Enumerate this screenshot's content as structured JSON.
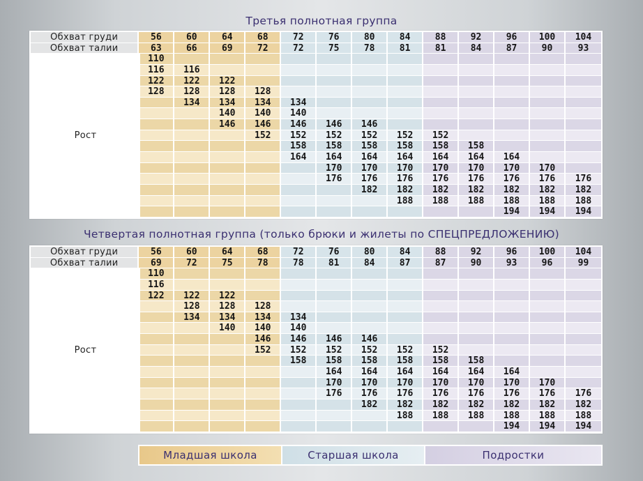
{
  "table1": {
    "title": "Третья полнотная группа",
    "chest_label": "Обхват груди",
    "waist_label": "Обхват талии",
    "height_label": "Рост",
    "chest": [
      "56",
      "60",
      "64",
      "68",
      "72",
      "76",
      "80",
      "84",
      "88",
      "92",
      "96",
      "100",
      "104"
    ],
    "waist": [
      "63",
      "66",
      "69",
      "72",
      "72",
      "75",
      "78",
      "81",
      "81",
      "84",
      "87",
      "90",
      "93"
    ],
    "rows": [
      [
        "110",
        "",
        "",
        "",
        "",
        "",
        "",
        "",
        "",
        "",
        "",
        "",
        ""
      ],
      [
        "116",
        "116",
        "",
        "",
        "",
        "",
        "",
        "",
        "",
        "",
        "",
        "",
        ""
      ],
      [
        "122",
        "122",
        "122",
        "",
        "",
        "",
        "",
        "",
        "",
        "",
        "",
        "",
        ""
      ],
      [
        "128",
        "128",
        "128",
        "128",
        "",
        "",
        "",
        "",
        "",
        "",
        "",
        "",
        ""
      ],
      [
        "",
        "134",
        "134",
        "134",
        "134",
        "",
        "",
        "",
        "",
        "",
        "",
        "",
        ""
      ],
      [
        "",
        "",
        "140",
        "140",
        "140",
        "",
        "",
        "",
        "",
        "",
        "",
        "",
        ""
      ],
      [
        "",
        "",
        "146",
        "146",
        "146",
        "146",
        "146",
        "",
        "",
        "",
        "",
        "",
        ""
      ],
      [
        "",
        "",
        "",
        "152",
        "152",
        "152",
        "152",
        "152",
        "152",
        "",
        "",
        "",
        ""
      ],
      [
        "",
        "",
        "",
        "",
        "158",
        "158",
        "158",
        "158",
        "158",
        "158",
        "",
        "",
        ""
      ],
      [
        "",
        "",
        "",
        "",
        "164",
        "164",
        "164",
        "164",
        "164",
        "164",
        "164",
        "",
        ""
      ],
      [
        "",
        "",
        "",
        "",
        "",
        "170",
        "170",
        "170",
        "170",
        "170",
        "170",
        "170",
        ""
      ],
      [
        "",
        "",
        "",
        "",
        "",
        "176",
        "176",
        "176",
        "176",
        "176",
        "176",
        "176",
        "176"
      ],
      [
        "",
        "",
        "",
        "",
        "",
        "",
        "182",
        "182",
        "182",
        "182",
        "182",
        "182",
        "182"
      ],
      [
        "",
        "",
        "",
        "",
        "",
        "",
        "",
        "188",
        "188",
        "188",
        "188",
        "188",
        "188"
      ],
      [
        "",
        "",
        "",
        "",
        "",
        "",
        "",
        "",
        "",
        "",
        "194",
        "194",
        "194"
      ]
    ]
  },
  "table2": {
    "title": "Четвертая полнотная группа (только брюки и жилеты по СПЕЦПРЕДЛОЖЕНИЮ)",
    "chest_label": "Обхват груди",
    "waist_label": "Обхват талии",
    "height_label": "Рост",
    "chest": [
      "56",
      "60",
      "64",
      "68",
      "72",
      "76",
      "80",
      "84",
      "88",
      "92",
      "96",
      "100",
      "104"
    ],
    "waist": [
      "69",
      "72",
      "75",
      "78",
      "78",
      "81",
      "84",
      "87",
      "87",
      "90",
      "93",
      "96",
      "99"
    ],
    "rows": [
      [
        "110",
        "",
        "",
        "",
        "",
        "",
        "",
        "",
        "",
        "",
        "",
        "",
        ""
      ],
      [
        "116",
        "",
        "",
        "",
        "",
        "",
        "",
        "",
        "",
        "",
        "",
        "",
        ""
      ],
      [
        "122",
        "122",
        "122",
        "",
        "",
        "",
        "",
        "",
        "",
        "",
        "",
        "",
        ""
      ],
      [
        "",
        "128",
        "128",
        "128",
        "",
        "",
        "",
        "",
        "",
        "",
        "",
        "",
        ""
      ],
      [
        "",
        "134",
        "134",
        "134",
        "134",
        "",
        "",
        "",
        "",
        "",
        "",
        "",
        ""
      ],
      [
        "",
        "",
        "140",
        "140",
        "140",
        "",
        "",
        "",
        "",
        "",
        "",
        "",
        ""
      ],
      [
        "",
        "",
        "",
        "146",
        "146",
        "146",
        "146",
        "",
        "",
        "",
        "",
        "",
        ""
      ],
      [
        "",
        "",
        "",
        "152",
        "152",
        "152",
        "152",
        "152",
        "152",
        "",
        "",
        "",
        ""
      ],
      [
        "",
        "",
        "",
        "",
        "158",
        "158",
        "158",
        "158",
        "158",
        "158",
        "",
        "",
        ""
      ],
      [
        "",
        "",
        "",
        "",
        "",
        "164",
        "164",
        "164",
        "164",
        "164",
        "164",
        "",
        ""
      ],
      [
        "",
        "",
        "",
        "",
        "",
        "170",
        "170",
        "170",
        "170",
        "170",
        "170",
        "170",
        ""
      ],
      [
        "",
        "",
        "",
        "",
        "",
        "176",
        "176",
        "176",
        "176",
        "176",
        "176",
        "176",
        "176"
      ],
      [
        "",
        "",
        "",
        "",
        "",
        "",
        "182",
        "182",
        "182",
        "182",
        "182",
        "182",
        "182"
      ],
      [
        "",
        "",
        "",
        "",
        "",
        "",
        "",
        "188",
        "188",
        "188",
        "188",
        "188",
        "188"
      ],
      [
        "",
        "",
        "",
        "",
        "",
        "",
        "",
        "",
        "",
        "",
        "194",
        "194",
        "194"
      ]
    ]
  },
  "legend": {
    "junior": "Младшая школа",
    "senior": "Старшая школа",
    "teens": "Подростки"
  },
  "colors": {
    "junior": "#ecd7a7",
    "senior": "#d5e2e8",
    "teens": "#dbd7e6",
    "title": "#3a2f70"
  }
}
